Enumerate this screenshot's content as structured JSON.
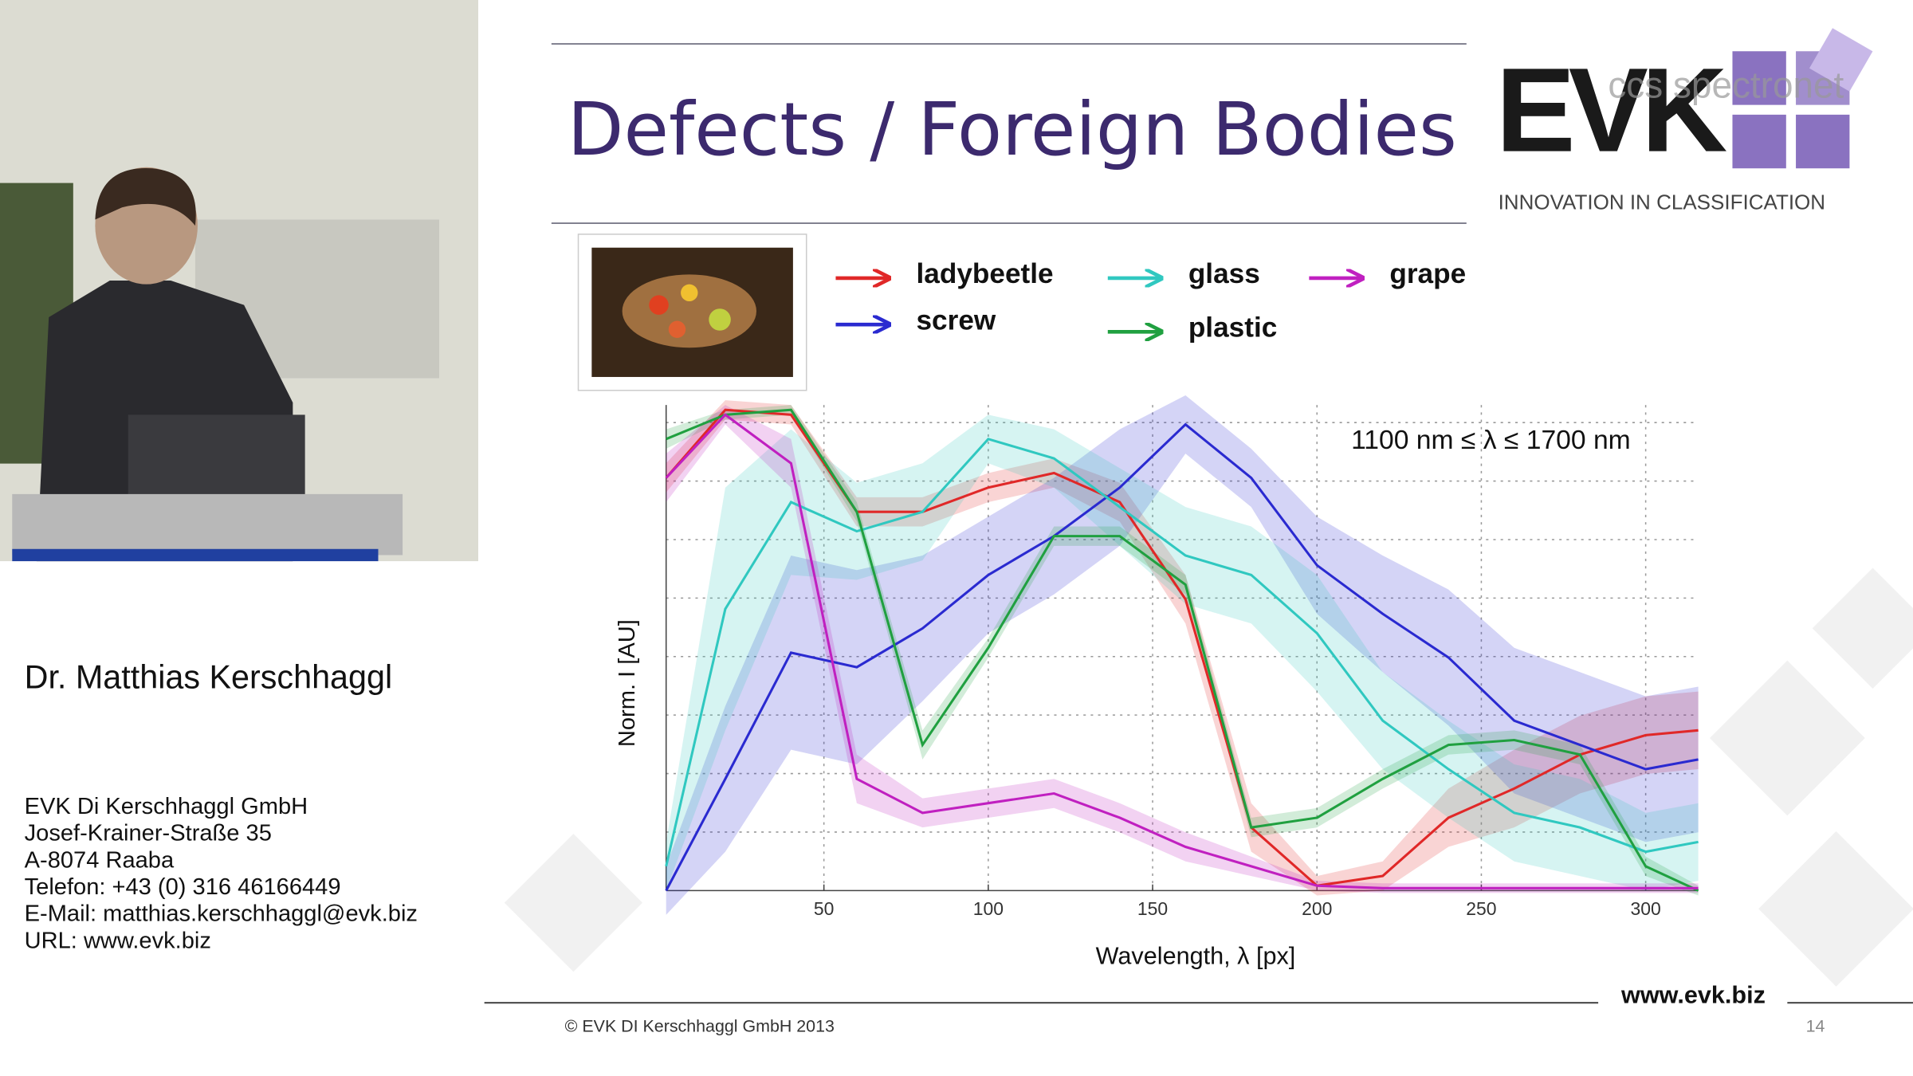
{
  "speaker_panel": {
    "name": "Dr. Matthias Kerschhaggl",
    "contact": [
      "EVK Di Kerschhaggl GmbH",
      "Josef-Krainer-Straße 35",
      "A-8074 Raaba",
      "Telefon: +43 (0) 316 46166449",
      "E-Mail: matthias.kerschhaggl@evk.biz",
      "URL: www.evk.biz"
    ]
  },
  "slide": {
    "title": "Defects / Foreign Bodies",
    "logo": {
      "brand": "EVK",
      "partner": "ccs spectronet",
      "tagline": "INNOVATION IN CLASSIFICATION"
    },
    "footer": {
      "copyright": "© EVK DI Kerschhaggl GmbH 2013",
      "page": "14",
      "url": "www.evk.biz"
    }
  },
  "chart_data": {
    "type": "line",
    "annotation": "1100 nm ≤ λ ≤ 1700 nm",
    "x_label": "Wavelength, λ [px]",
    "y_label": "Norm. I [AU]",
    "x": [
      2,
      20,
      40,
      60,
      80,
      100,
      120,
      140,
      160,
      180,
      200,
      220,
      240,
      260,
      280,
      300,
      316
    ],
    "xlim": [
      2,
      316
    ],
    "xticks": [
      50,
      100,
      150,
      200,
      250,
      300
    ],
    "ylim": [
      0,
      1
    ],
    "grid": true,
    "series": [
      {
        "name": "ladybeetle",
        "color": "#e02828",
        "values": [
          0.85,
          0.99,
          0.98,
          0.78,
          0.78,
          0.83,
          0.86,
          0.8,
          0.6,
          0.13,
          0.01,
          0.03,
          0.15,
          0.21,
          0.28,
          0.32,
          0.33
        ],
        "spread": [
          0.03,
          0.02,
          0.02,
          0.03,
          0.03,
          0.03,
          0.03,
          0.04,
          0.05,
          0.05,
          0.02,
          0.03,
          0.06,
          0.08,
          0.08,
          0.08,
          0.08
        ]
      },
      {
        "name": "screw",
        "color": "#2a2ad0",
        "values": [
          0,
          0.23,
          0.49,
          0.46,
          0.54,
          0.65,
          0.73,
          0.83,
          0.96,
          0.85,
          0.67,
          0.57,
          0.48,
          0.35,
          0.3,
          0.25,
          0.27
        ],
        "spread": [
          0.05,
          0.15,
          0.2,
          0.2,
          0.15,
          0.12,
          0.12,
          0.12,
          0.06,
          0.06,
          0.1,
          0.12,
          0.14,
          0.15,
          0.15,
          0.15,
          0.15
        ]
      },
      {
        "name": "glass",
        "color": "#30c8c0",
        "values": [
          0.05,
          0.58,
          0.8,
          0.74,
          0.78,
          0.93,
          0.89,
          0.79,
          0.69,
          0.65,
          0.53,
          0.35,
          0.25,
          0.16,
          0.13,
          0.08,
          0.1
        ],
        "spread": [
          0.05,
          0.25,
          0.15,
          0.1,
          0.1,
          0.05,
          0.06,
          0.08,
          0.1,
          0.1,
          0.12,
          0.1,
          0.1,
          0.1,
          0.1,
          0.08,
          0.08
        ]
      },
      {
        "name": "plastic",
        "color": "#20a040",
        "values": [
          0.93,
          0.98,
          0.99,
          0.78,
          0.3,
          0.5,
          0.73,
          0.73,
          0.63,
          0.13,
          0.15,
          0.23,
          0.3,
          0.31,
          0.28,
          0.05,
          0
        ],
        "spread": [
          0.02,
          0.01,
          0.01,
          0.02,
          0.03,
          0.02,
          0.02,
          0.02,
          0.02,
          0.02,
          0.02,
          0.02,
          0.02,
          0.02,
          0.02,
          0.02,
          0.01
        ]
      },
      {
        "name": "grape",
        "color": "#c020c0",
        "values": [
          0.85,
          0.98,
          0.88,
          0.23,
          0.16,
          0.18,
          0.2,
          0.15,
          0.09,
          0.05,
          0.01,
          0.005,
          0.005,
          0.005,
          0.005,
          0.005,
          0.005
        ],
        "spread": [
          0.05,
          0.02,
          0.05,
          0.05,
          0.03,
          0.03,
          0.03,
          0.03,
          0.03,
          0.02,
          0.01,
          0.01,
          0.01,
          0.01,
          0.01,
          0.01,
          0.01
        ]
      }
    ]
  }
}
